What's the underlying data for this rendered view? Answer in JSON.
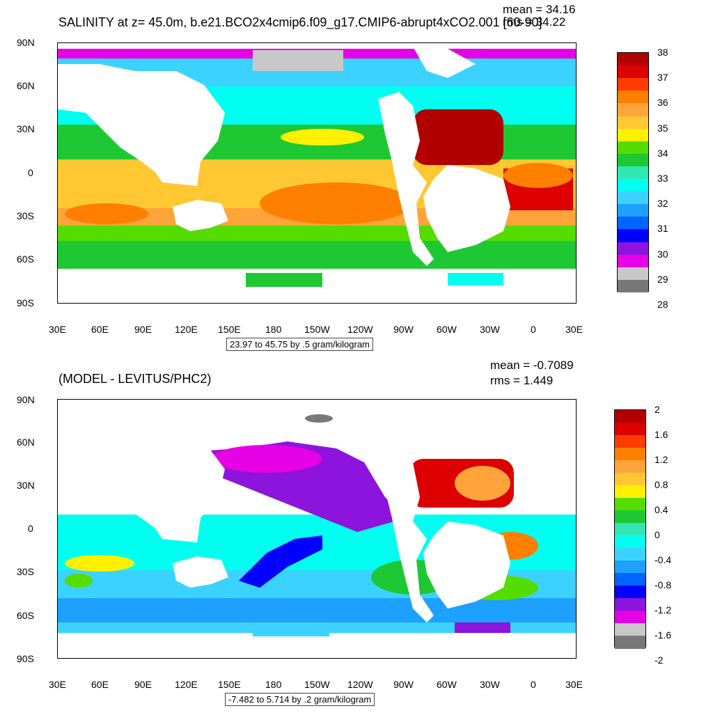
{
  "panels": [
    {
      "id": "top",
      "title": "SALINITY at z=  45.0m, b.e21.BCO2x4cmip6.f09_g17.CMIP6-abrupt4xCO2.001 [60-90]",
      "mean": "mean = 34.16",
      "rms": "rms = 34.22",
      "y_labels": [
        "90N",
        "60N",
        "30N",
        "0",
        "30S",
        "60S",
        "90S"
      ],
      "x_labels": [
        "30E",
        "60E",
        "90E",
        "120E",
        "150E",
        "180",
        "150W",
        "120W",
        "90W",
        "60W",
        "30W",
        "0",
        "30E"
      ],
      "info": "23.97 to 45.75 by .5 gram/kilogram",
      "colorbar": {
        "colors": [
          "#b20000",
          "#dc0000",
          "#ff3b00",
          "#ff7f00",
          "#ffa43a",
          "#ffc833",
          "#fff000",
          "#55dc00",
          "#1ec832",
          "#32e6b4",
          "#00fff0",
          "#3cd2ff",
          "#1ea0ff",
          "#0064ff",
          "#0000ff",
          "#8c14dc",
          "#e600e6",
          "#c8c8c8",
          "#787878"
        ],
        "labels": [
          "38",
          "37",
          "36",
          "35",
          "34",
          "33",
          "32",
          "31",
          "30",
          "29",
          "28"
        ]
      }
    },
    {
      "id": "bottom",
      "title": "(MODEL - LEVITUS/PHC2)",
      "mean": "mean = -0.7089",
      "rms": "rms = 1.449",
      "y_labels": [
        "90N",
        "60N",
        "30N",
        "0",
        "30S",
        "60S",
        "90S"
      ],
      "x_labels": [
        "30E",
        "60E",
        "90E",
        "120E",
        "150E",
        "180",
        "150W",
        "120W",
        "90W",
        "60W",
        "30W",
        "0",
        "30E"
      ],
      "info": "-7.482 to 5.714 by .2 gram/kilogram",
      "colorbar": {
        "colors": [
          "#b20000",
          "#dc0000",
          "#ff3b00",
          "#ff7f00",
          "#ffa43a",
          "#ffc833",
          "#fff000",
          "#55dc00",
          "#1ec832",
          "#32e6b4",
          "#00fff0",
          "#3cd2ff",
          "#1ea0ff",
          "#0064ff",
          "#0000ff",
          "#8c14dc",
          "#e600e6",
          "#c8c8c8",
          "#787878"
        ],
        "labels": [
          "2",
          "1.6",
          "1.2",
          "0.8",
          "0.4",
          "0",
          "-0.4",
          "-0.8",
          "-1.2",
          "-1.6",
          "-2"
        ]
      }
    }
  ]
}
